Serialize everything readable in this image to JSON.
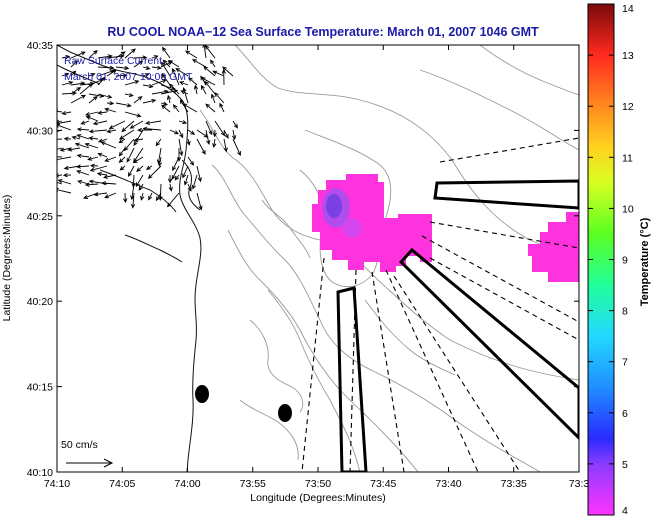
{
  "map": {
    "title": "RU COOL  NOAA−12  Sea Surface Temperature:  March 01, 2007 1046 GMT",
    "annotation": {
      "line1": "Raw Surface Current",
      "line2": "March 01, 2007 10:00 GMT"
    },
    "xlabel": "Longitude (Degrees:Minutes)",
    "ylabel": "Latitude (Degrees:Minutes)",
    "x_ticks": [
      "74:10",
      "74:05",
      "74:00",
      "73:55",
      "73:50",
      "73:45",
      "73:40",
      "73:35",
      "73:3"
    ],
    "y_ticks": [
      "40:35",
      "40:30",
      "40:25",
      "40:20",
      "40:15",
      "40:10"
    ],
    "scale_label": "50 cm/s"
  },
  "colorbar": {
    "label": "Temperature (°C)",
    "ticks": [
      "14",
      "13",
      "12",
      "11",
      "10",
      "9",
      "8",
      "7",
      "6",
      "5",
      "4"
    ],
    "min": 4,
    "max": 14
  },
  "colors": {
    "title": "#1a1aa8",
    "annotation": "#1a1aa8",
    "sst_patch": "#ff33dd",
    "sst_cold_core": "#7a4ee0",
    "contours": "#9a9a9a"
  }
}
